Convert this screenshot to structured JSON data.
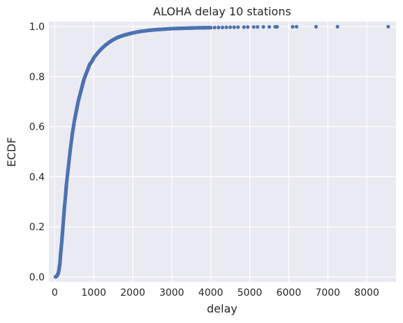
{
  "chart_data": {
    "type": "scatter",
    "title": "ALOHA delay 10 stations",
    "xlabel": "delay",
    "ylabel": "ECDF",
    "xlim": [
      -150,
      8750
    ],
    "ylim": [
      -0.02,
      1.02
    ],
    "xticks": [
      0,
      1000,
      2000,
      3000,
      4000,
      5000,
      6000,
      7000,
      8000
    ],
    "xtick_labels": [
      "0",
      "1000",
      "2000",
      "3000",
      "4000",
      "5000",
      "6000",
      "7000",
      "8000"
    ],
    "yticks": [
      0.0,
      0.2,
      0.4,
      0.6,
      0.8,
      1.0
    ],
    "ytick_labels": [
      "0.0",
      "0.2",
      "0.4",
      "0.6",
      "0.8",
      "1.0"
    ],
    "grid": true,
    "background": "#eaeaf2",
    "grid_color": "#ffffff",
    "marker_color": "#4c72b0",
    "series": [
      {
        "x": [
          20,
          50,
          80,
          100,
          130,
          150,
          180,
          200,
          230,
          250,
          280,
          300,
          350,
          400,
          450,
          500,
          550,
          600,
          650,
          700,
          750,
          800,
          850,
          900,
          950,
          1000,
          1100,
          1200,
          1300,
          1400,
          1500,
          1600,
          1700,
          1800,
          1900,
          2000,
          2200,
          2400,
          2600,
          2800,
          3000,
          3200,
          3400,
          3600,
          3800,
          4000,
          4100,
          4200,
          4300,
          4400,
          4500,
          4600,
          4700,
          4850,
          4950,
          5100,
          5200,
          5350,
          5500,
          5650,
          5700,
          6100,
          6200,
          6700,
          7250,
          8550
        ],
        "y": [
          0.0,
          0.003,
          0.01,
          0.02,
          0.05,
          0.09,
          0.14,
          0.18,
          0.24,
          0.28,
          0.33,
          0.37,
          0.44,
          0.51,
          0.57,
          0.62,
          0.66,
          0.7,
          0.73,
          0.76,
          0.79,
          0.81,
          0.83,
          0.85,
          0.86,
          0.875,
          0.895,
          0.912,
          0.926,
          0.938,
          0.948,
          0.956,
          0.962,
          0.967,
          0.971,
          0.975,
          0.981,
          0.985,
          0.988,
          0.99,
          0.992,
          0.993,
          0.994,
          0.995,
          0.9955,
          0.996,
          0.9963,
          0.9966,
          0.9969,
          0.9972,
          0.9975,
          0.9977,
          0.9979,
          0.9981,
          0.9983,
          0.9985,
          0.9987,
          0.9989,
          0.9991,
          0.9993,
          0.9994,
          0.9995,
          0.9996,
          0.9997,
          0.9998,
          1.0
        ]
      }
    ]
  }
}
